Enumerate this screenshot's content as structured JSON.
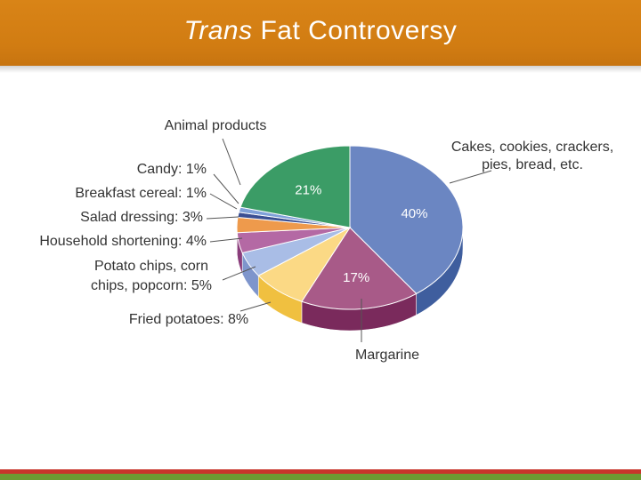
{
  "header": {
    "title_italic": "Trans",
    "title_rest": " Fat Controversy",
    "colors": {
      "bar": "#d58014",
      "text": "#ffffff"
    }
  },
  "chart_data": {
    "type": "pie",
    "title": "",
    "slices": [
      {
        "label": "Cakes, cookies, crackers,",
        "label2": "pies, bread, etc.",
        "value": 40,
        "value_label": "40%",
        "color": "#6b86c2",
        "side": "#3f5e9e"
      },
      {
        "label": "Margarine",
        "value": 17,
        "value_label": "17%",
        "color": "#a85a88",
        "side": "#7a2a5c"
      },
      {
        "label": "Fried potatoes: 8%",
        "value": 8,
        "value_label": "",
        "color": "#fbd985",
        "side": "#f0c040"
      },
      {
        "label": "Potato chips, corn",
        "label2": "chips, popcorn: 5%",
        "value": 5,
        "value_label": "",
        "color": "#a9bde6",
        "side": "#7e95cc"
      },
      {
        "label": "Household shortening: 4%",
        "value": 4,
        "value_label": "",
        "color": "#b469a4",
        "side": "#8a3d7b"
      },
      {
        "label": "Salad dressing: 3%",
        "value": 3,
        "value_label": "",
        "color": "#ee9a4c",
        "side": "#cf742b"
      },
      {
        "label": "Breakfast cereal: 1%",
        "value": 1,
        "value_label": "",
        "color": "#3a4f93",
        "side": "#26346a"
      },
      {
        "label": "Candy: 1%",
        "value": 1,
        "value_label": "",
        "color": "#7fa0d8",
        "side": "#5a78b3"
      },
      {
        "label": "Animal products",
        "value": 21,
        "value_label": "21%",
        "color": "#3b9c66",
        "side": "#2a7a4c"
      }
    ]
  }
}
